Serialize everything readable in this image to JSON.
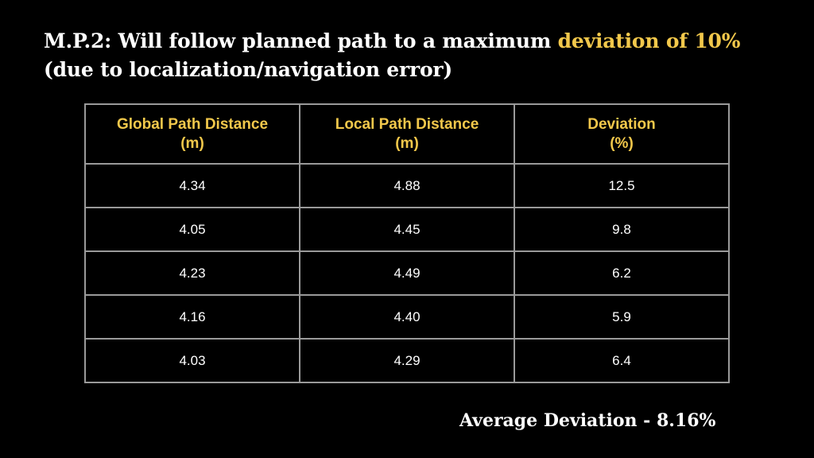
{
  "slide": {
    "title_prefix": "M.P.2: Will follow planned path to a maximum ",
    "title_highlight": "deviation of 10%",
    "title_line2": "(due to localization/navigation error)",
    "highlight_color": "#f2c84b",
    "background_color": "#000000"
  },
  "table": {
    "headers": [
      {
        "line1": "Global Path Distance",
        "line2": "(m)"
      },
      {
        "line1": "Local Path Distance",
        "line2": "(m)"
      },
      {
        "line1": "Deviation",
        "line2": "(%)"
      }
    ],
    "rows": [
      [
        "4.34",
        "4.88",
        "12.5"
      ],
      [
        "4.05",
        "4.45",
        "9.8"
      ],
      [
        "4.23",
        "4.49",
        "6.2"
      ],
      [
        "4.16",
        "4.40",
        "5.9"
      ],
      [
        "4.03",
        "4.29",
        "6.4"
      ]
    ]
  },
  "footer": {
    "average_label": "Average Deviation - 8.16%"
  }
}
